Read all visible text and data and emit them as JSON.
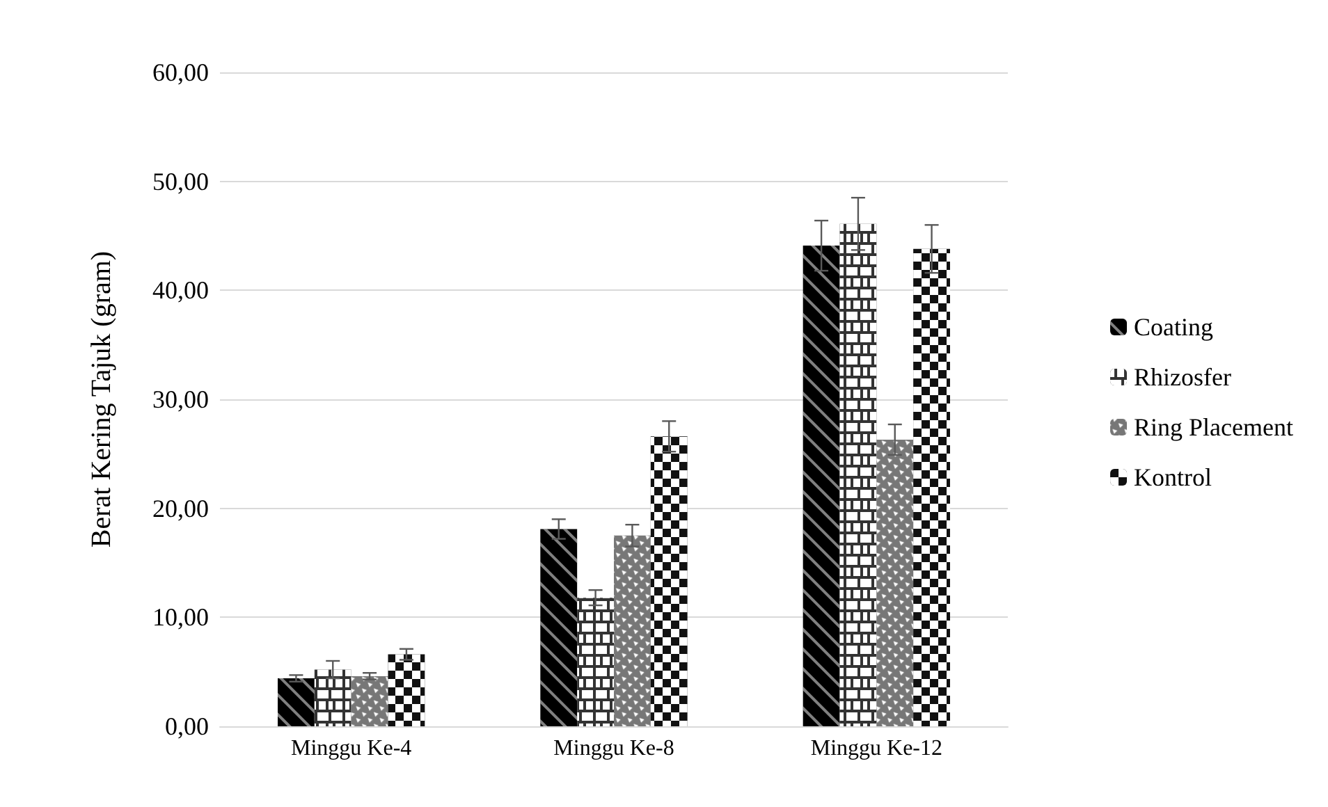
{
  "chart_data": {
    "type": "bar",
    "ylabel": "Berat Kering Tajuk (gram)",
    "categories": [
      "Minggu Ke-4",
      "Minggu Ke-8",
      "Minggu Ke-12"
    ],
    "series": [
      {
        "name": "Coating",
        "color": "#000000",
        "values": [
          4.4,
          18.1,
          44.1
        ],
        "errors": [
          0.3,
          0.9,
          2.3
        ]
      },
      {
        "name": "Rhizosfer",
        "color": "#333333",
        "values": [
          5.2,
          11.8,
          46.1
        ],
        "errors": [
          0.8,
          0.7,
          2.4
        ]
      },
      {
        "name": "Ring Placement",
        "color": "#777777",
        "values": [
          4.6,
          17.5,
          26.3
        ],
        "errors": [
          0.3,
          1.0,
          1.4
        ]
      },
      {
        "name": "Kontrol",
        "color": "#111111",
        "values": [
          6.6,
          26.6,
          43.8
        ],
        "errors": [
          0.5,
          1.4,
          2.2
        ]
      }
    ],
    "ylim": [
      0,
      60
    ],
    "yticks": [
      {
        "value": 0,
        "label": "0,00"
      },
      {
        "value": 10,
        "label": "10,00"
      },
      {
        "value": 20,
        "label": "20,00"
      },
      {
        "value": 30,
        "label": "30,00"
      },
      {
        "value": 40,
        "label": "40,00"
      },
      {
        "value": 50,
        "label": "50,00"
      },
      {
        "value": 60,
        "label": "60,00"
      }
    ],
    "grid": "y",
    "legend": "right"
  }
}
